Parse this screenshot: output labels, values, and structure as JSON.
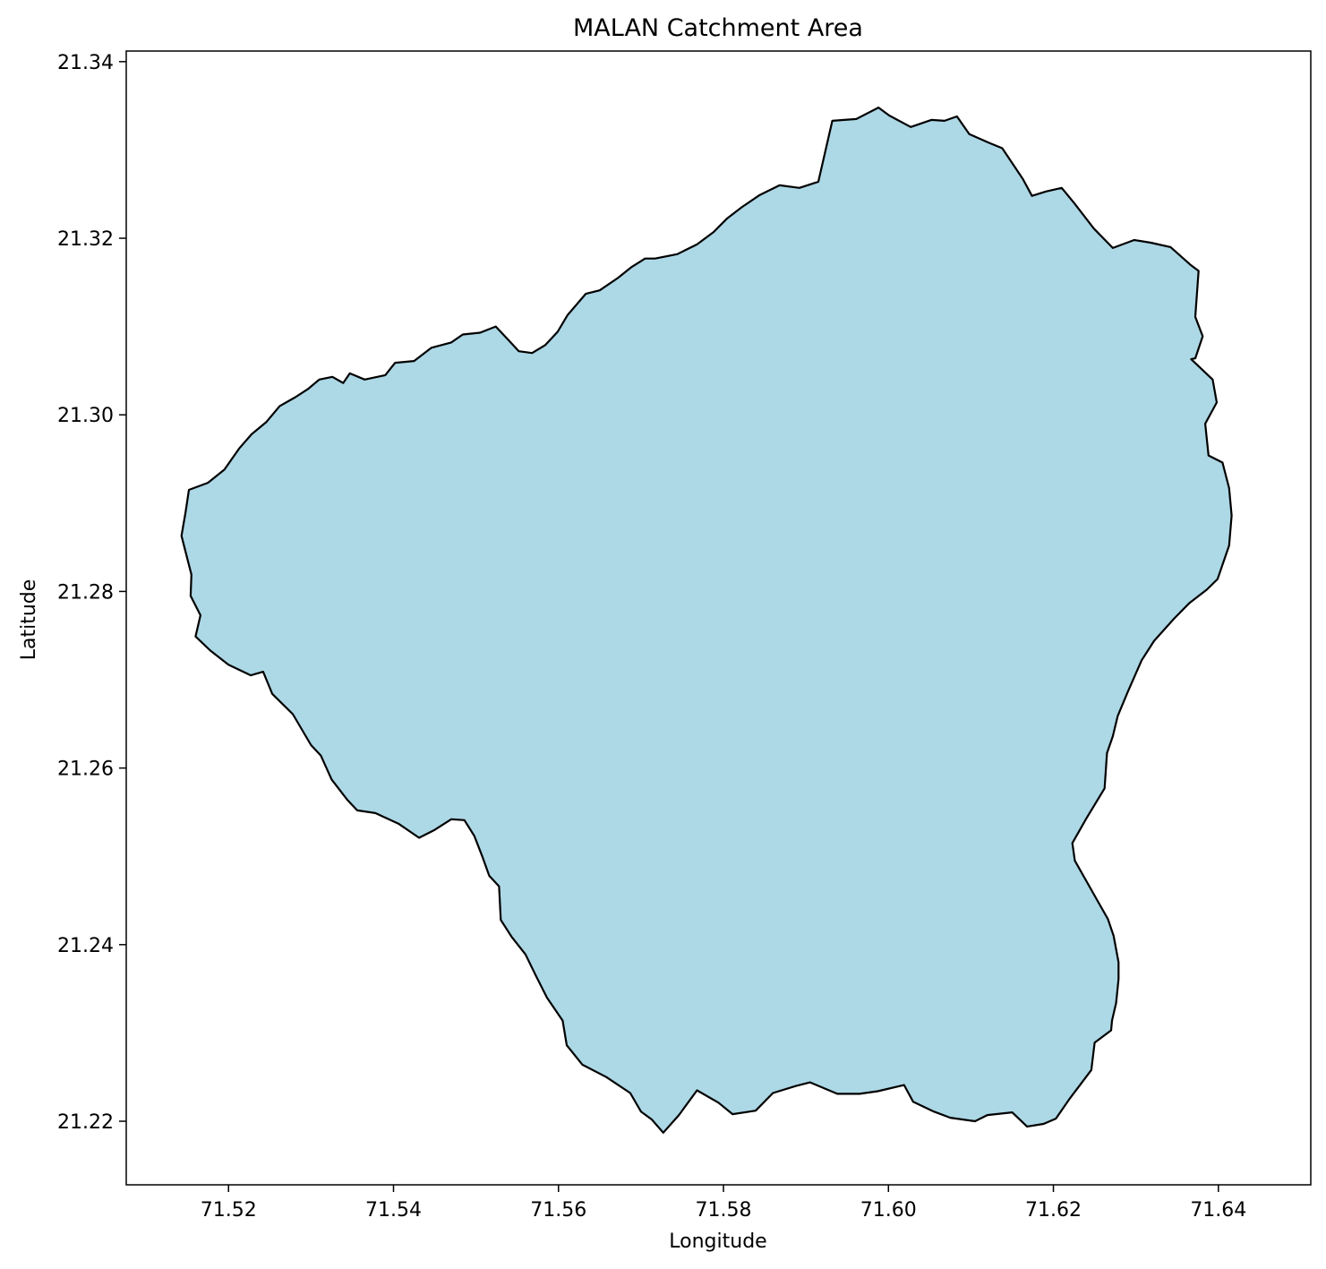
{
  "chart_data": {
    "type": "map",
    "title": "MALAN Catchment Area",
    "xlabel": "Longitude",
    "ylabel": "Latitude",
    "xlim": [
      71.5076,
      71.6512
    ],
    "ylim": [
      21.2128,
      21.3412
    ],
    "xticks": [
      "71.52",
      "71.54",
      "71.56",
      "71.58",
      "71.60",
      "71.62",
      "71.64"
    ],
    "yticks": [
      "21.22",
      "21.24",
      "21.26",
      "21.28",
      "21.30",
      "21.32",
      "21.34"
    ],
    "grid": false,
    "legend": "none",
    "fill_color": "#add8e6",
    "edge_color": "#000000",
    "polygon": {
      "name": "",
      "lon": [
        71.5152,
        71.5175,
        71.5195,
        71.5213,
        71.5228,
        71.5246,
        71.5262,
        71.5281,
        71.5296,
        71.531,
        71.5326,
        71.5339,
        71.5347,
        71.5365,
        71.539,
        71.5402,
        71.5425,
        71.5446,
        71.547,
        71.5484,
        71.5505,
        71.5524,
        71.5539,
        71.5552,
        71.5568,
        71.5584,
        71.5599,
        71.5611,
        71.5633,
        71.565,
        71.5672,
        71.5688,
        71.5705,
        71.5717,
        71.5744,
        71.5768,
        71.5788,
        71.5804,
        71.5822,
        71.5844,
        71.5868,
        71.5892,
        71.5915,
        71.5932,
        71.5961,
        71.5988,
        71.6001,
        71.6027,
        71.6052,
        71.6068,
        71.6083,
        71.6098,
        71.6122,
        71.6138,
        71.6163,
        71.6174,
        71.6191,
        71.621,
        71.6225,
        71.6249,
        71.6272,
        71.6298,
        71.6318,
        71.6342,
        71.6366,
        71.6376,
        71.6372,
        71.6381,
        71.6372,
        71.6367,
        71.6393,
        71.6398,
        71.6384,
        71.6388,
        71.6405,
        71.6413,
        71.6416,
        71.6413,
        71.6399,
        71.6386,
        71.6365,
        71.6346,
        71.6322,
        71.6307,
        71.629,
        71.6278,
        71.6272,
        71.6265,
        71.6262,
        71.624,
        71.6223,
        71.6226,
        71.6252,
        71.6266,
        71.6273,
        71.6279,
        71.6279,
        71.6276,
        71.6271,
        71.627,
        71.625,
        71.6246,
        71.622,
        71.6203,
        71.6188,
        71.6168,
        71.615,
        71.612,
        71.6105,
        71.6075,
        71.6055,
        71.603,
        71.6019,
        71.5987,
        71.5965,
        71.5938,
        71.5905,
        71.5888,
        71.586,
        71.5839,
        71.5811,
        71.5794,
        71.5768,
        71.5746,
        71.5727,
        71.5713,
        71.57,
        71.5687,
        71.5658,
        71.5629,
        71.561,
        71.5605,
        71.5586,
        71.5573,
        71.556,
        71.5543,
        71.553,
        71.5528,
        71.5516,
        71.5508,
        71.5498,
        71.5486,
        71.547,
        71.545,
        71.5431,
        71.5406,
        71.5378,
        71.5356,
        71.5344,
        71.5325,
        71.5312,
        71.53,
        71.5278,
        71.5253,
        71.5242,
        71.5227,
        71.52,
        71.5178,
        71.516,
        71.5166,
        71.5154,
        71.5155,
        71.5143,
        71.5148,
        71.5152,
        71.5152
      ],
      "lat": [
        21.2915,
        21.2923,
        21.2938,
        21.2962,
        21.2978,
        21.2992,
        21.301,
        21.302,
        21.3029,
        21.304,
        21.3043,
        21.3036,
        21.3047,
        21.304,
        21.3045,
        21.3059,
        21.3061,
        21.3076,
        21.3082,
        21.3091,
        21.3093,
        21.31,
        21.3085,
        21.3072,
        21.307,
        21.3079,
        21.3094,
        21.3113,
        21.3137,
        21.3141,
        21.3155,
        21.3167,
        21.3177,
        21.3177,
        21.3182,
        21.3193,
        21.3207,
        21.3222,
        21.3235,
        21.3249,
        21.326,
        21.3257,
        21.3264,
        21.3333,
        21.3335,
        21.3348,
        21.3339,
        21.3326,
        21.3334,
        21.3333,
        21.3338,
        21.3318,
        21.3308,
        21.3302,
        21.3267,
        21.3248,
        21.3253,
        21.3257,
        21.324,
        21.3211,
        21.3189,
        21.3198,
        21.3195,
        21.319,
        21.317,
        21.3163,
        21.3111,
        21.3089,
        21.3064,
        21.3063,
        21.304,
        21.3014,
        21.299,
        21.2954,
        21.2946,
        21.2917,
        21.2886,
        21.2852,
        21.2814,
        21.2802,
        21.2787,
        21.2769,
        21.2744,
        21.2722,
        21.2686,
        21.2659,
        21.2636,
        21.2617,
        21.2577,
        21.2543,
        21.2515,
        21.2495,
        21.2452,
        21.2429,
        21.241,
        21.238,
        21.2361,
        21.2334,
        21.2314,
        21.2303,
        21.2289,
        21.2258,
        21.2226,
        21.2203,
        21.2197,
        21.2194,
        21.221,
        21.2207,
        21.22,
        21.2204,
        21.2211,
        21.2222,
        21.2241,
        21.2234,
        21.2231,
        21.2231,
        21.2244,
        21.224,
        21.2232,
        21.2212,
        21.2208,
        21.2221,
        21.2235,
        21.2207,
        21.2187,
        21.2202,
        21.2211,
        21.2232,
        21.225,
        21.2264,
        21.2286,
        21.2314,
        21.234,
        21.2364,
        21.2389,
        21.2409,
        21.2428,
        21.2466,
        21.2478,
        21.2499,
        21.2523,
        21.2541,
        21.2542,
        21.253,
        21.2521,
        21.2537,
        21.2549,
        21.2552,
        21.2564,
        21.2587,
        21.2614,
        21.2626,
        21.2661,
        21.2684,
        21.2709,
        21.2705,
        21.2717,
        21.2733,
        21.2749,
        21.2773,
        21.2795,
        21.2819,
        21.2863,
        21.289,
        21.2915,
        21.2915
      ]
    }
  }
}
